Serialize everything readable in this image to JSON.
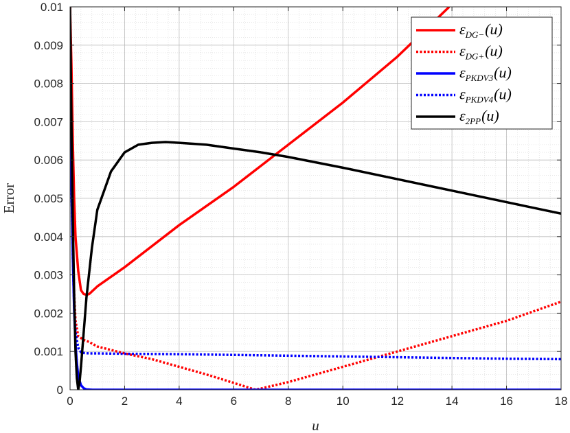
{
  "chart_data": {
    "type": "line",
    "xlabel": "u",
    "ylabel": "Error",
    "xlim": [
      0,
      18
    ],
    "ylim": [
      0,
      0.01
    ],
    "x_ticks": [
      "0",
      "2",
      "4",
      "6",
      "8",
      "10",
      "12",
      "14",
      "16",
      "18"
    ],
    "y_ticks": [
      "0",
      "0.001",
      "0.002",
      "0.003",
      "0.004",
      "0.005",
      "0.006",
      "0.007",
      "0.008",
      "0.009",
      "0.01"
    ],
    "grid": true,
    "minor_grid": true,
    "legend_position": "top-right",
    "series": [
      {
        "name": "ε_DG−(u)",
        "name_parts": [
          "ε",
          "DG−",
          "(u)"
        ],
        "color": "#ff0000",
        "dash": "solid",
        "x": [
          0,
          0.05,
          0.1,
          0.15,
          0.2,
          0.3,
          0.4,
          0.5,
          0.6,
          0.7,
          1,
          2,
          4,
          6,
          8,
          10,
          12,
          13.9
        ],
        "y": [
          0.01,
          0.0085,
          0.0065,
          0.005,
          0.004,
          0.0031,
          0.0026,
          0.0025,
          0.00248,
          0.0025,
          0.0027,
          0.0032,
          0.0043,
          0.0053,
          0.0064,
          0.0075,
          0.0087,
          0.01
        ]
      },
      {
        "name": "ε_DG+(u)",
        "name_parts": [
          "ε",
          "DG+",
          "(u)"
        ],
        "color": "#ff0000",
        "dash": "dotted",
        "x": [
          0,
          0.05,
          0.1,
          0.15,
          0.2,
          0.3,
          0.5,
          0.7,
          1,
          2,
          3,
          4,
          5,
          6,
          6.8,
          8,
          10,
          12,
          14,
          16,
          18
        ],
        "y": [
          0.01,
          0.0065,
          0.004,
          0.0025,
          0.0018,
          0.0014,
          0.0013,
          0.00125,
          0.00113,
          0.00095,
          0.0008,
          0.0006,
          0.0004,
          0.00018,
          0.0,
          0.0002,
          0.0006,
          0.001,
          0.0014,
          0.0018,
          0.0023
        ]
      },
      {
        "name": "ε_PKDV3(u)",
        "name_parts": [
          "ε",
          "PKDV3",
          "(u)"
        ],
        "color": "#0000ff",
        "dash": "solid",
        "x": [
          0,
          0.05,
          0.1,
          0.15,
          0.2,
          0.25,
          0.3,
          0.4,
          0.5,
          0.6,
          0.8,
          1,
          18
        ],
        "y": [
          0.0078,
          0.0055,
          0.0035,
          0.0021,
          0.0012,
          0.0007,
          0.00035,
          0.00012,
          4e-05,
          1e-05,
          0.0,
          0.0,
          0.0
        ]
      },
      {
        "name": "ε_PKDV4(u)",
        "name_parts": [
          "ε",
          "PKDV4",
          "(u)"
        ],
        "color": "#0000ff",
        "dash": "dotted",
        "x": [
          0,
          0.05,
          0.1,
          0.15,
          0.2,
          0.3,
          0.4,
          0.5,
          0.7,
          1,
          2,
          4,
          6,
          8,
          10,
          12,
          14,
          16,
          18
        ],
        "y": [
          0.0078,
          0.0055,
          0.0035,
          0.0022,
          0.0015,
          0.0011,
          0.00098,
          0.00096,
          0.00095,
          0.00095,
          0.00094,
          0.00093,
          0.00091,
          0.00089,
          0.00087,
          0.00085,
          0.00083,
          0.00081,
          0.0008
        ]
      },
      {
        "name": "ε_2PP(u)",
        "name_parts": [
          "ε",
          "2PP",
          "(u)"
        ],
        "color": "#000000",
        "dash": "solid",
        "x": [
          0,
          0.05,
          0.1,
          0.15,
          0.2,
          0.25,
          0.3,
          0.35,
          0.4,
          0.5,
          0.6,
          0.8,
          1,
          1.5,
          2,
          2.5,
          3,
          3.5,
          4,
          5,
          6,
          7,
          8,
          10,
          12,
          14,
          16,
          18
        ],
        "y": [
          0.01,
          0.007,
          0.0045,
          0.0025,
          0.001,
          0.0003,
          0.0,
          0.0002,
          0.0006,
          0.0015,
          0.0024,
          0.0037,
          0.0047,
          0.0057,
          0.0062,
          0.0064,
          0.00645,
          0.00647,
          0.00645,
          0.0064,
          0.0063,
          0.0062,
          0.00608,
          0.0058,
          0.0055,
          0.0052,
          0.0049,
          0.0046
        ]
      }
    ]
  }
}
